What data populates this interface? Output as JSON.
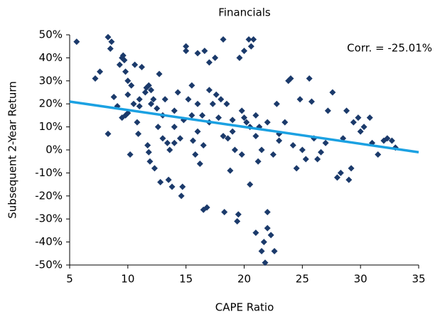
{
  "chart_data": {
    "type": "scatter",
    "title": "Financials",
    "x_label": "CAPE Ratio",
    "y_label": "Subsequent 2-Year Return",
    "annotation": "Corr. = -25.01%",
    "color": "#1b3a6b",
    "x": [
      5.6,
      7.2,
      7.6,
      8.3,
      8.3,
      8.5,
      8.6,
      8.8,
      9.1,
      9.3,
      9.5,
      9.6,
      9.7,
      9.8,
      9.8,
      10,
      10,
      10.2,
      10.3,
      10.5,
      10.6,
      10.8,
      10.9,
      11,
      11.2,
      11.5,
      11.6,
      11.8,
      11.7,
      11.8,
      11.9,
      12,
      12.2,
      12.3,
      12.5,
      12.6,
      12.7,
      12.8,
      13,
      13.2,
      13.4,
      13.5,
      13.6,
      13.8,
      14,
      14,
      14.3,
      14.5,
      14.6,
      14.7,
      14.8,
      15,
      15,
      15.2,
      15.5,
      15.6,
      15.8,
      16,
      16,
      16.2,
      16.4,
      16.5,
      16.6,
      16.8,
      17,
      17,
      17.3,
      17.5,
      17.6,
      17.8,
      18,
      18.2,
      18.3,
      18.5,
      18.6,
      18.8,
      19,
      19.2,
      19.4,
      19.5,
      19.6,
      19.8,
      20,
      20.2,
      20.4,
      20.5,
      20.6,
      20.8,
      21,
      21,
      21.2,
      21.3,
      21.5,
      21.7,
      21.8,
      22,
      22,
      22.3,
      22.6,
      22.8,
      23,
      23.5,
      23.8,
      24,
      24.2,
      24.5,
      24.8,
      25,
      25.3,
      25.6,
      25.8,
      26,
      26.3,
      26.6,
      27,
      27.2,
      27.6,
      28,
      28.3,
      28.5,
      28.8,
      29,
      29.2,
      29.4,
      29.8,
      30,
      30.3,
      30.8,
      31,
      31.5,
      32,
      32.3,
      32.7,
      33,
      15.5,
      16,
      17,
      19,
      20,
      21,
      22,
      23,
      20.5,
      14,
      13,
      12,
      11,
      10,
      9.5,
      18.2,
      16.5,
      19.8,
      22.5,
      21.5
    ],
    "values": [
      47,
      31,
      34,
      7,
      49,
      44,
      47,
      23,
      19,
      37,
      40,
      41,
      39,
      34,
      15,
      30,
      16,
      -2,
      28,
      20,
      37,
      12,
      7,
      19,
      36,
      25,
      27,
      28,
      2,
      -1,
      -5,
      26,
      22,
      -8,
      18,
      10,
      33,
      -14,
      15,
      22,
      3,
      -13,
      0,
      -16,
      17,
      10,
      25,
      5,
      -20,
      -16,
      13,
      45,
      43,
      22,
      28,
      4,
      -2,
      42,
      8,
      -6,
      15,
      -26,
      43,
      -25,
      26,
      38,
      20,
      40,
      24,
      14,
      22,
      48,
      -27,
      20,
      5,
      -9,
      13,
      0,
      -31,
      -28,
      40,
      17,
      43,
      12,
      48,
      -15,
      45,
      48,
      -36,
      15,
      -5,
      10,
      -44,
      -40,
      -49,
      -27,
      -34,
      -37,
      -44,
      20,
      7,
      12,
      30,
      31,
      2,
      -8,
      22,
      0,
      -4,
      31,
      21,
      5,
      -4,
      -1,
      3,
      17,
      25,
      -12,
      -10,
      5,
      17,
      -13,
      -8,
      12,
      14,
      8,
      10,
      14,
      3,
      -2,
      4,
      5,
      4,
      1,
      15,
      20,
      12,
      8,
      14,
      6,
      12,
      4,
      10,
      3,
      5,
      20,
      22,
      24,
      14,
      6,
      2,
      -2,
      -2,
      0
    ],
    "trendline": {
      "x": [
        5,
        35
      ],
      "y": [
        21,
        -1
      ],
      "color": "#1ba1e2"
    },
    "xlim": [
      5,
      35
    ],
    "xticks": [
      5,
      10,
      15,
      20,
      25,
      30,
      35
    ],
    "ylim": [
      -50,
      50
    ],
    "yticks": [
      {
        "value": -50,
        "label": "-50%"
      },
      {
        "value": -40,
        "label": "-40%"
      },
      {
        "value": -30,
        "label": "-30%"
      },
      {
        "value": -20,
        "label": "-20%"
      },
      {
        "value": -10,
        "label": "-10%"
      },
      {
        "value": 0,
        "label": "0%"
      },
      {
        "value": 10,
        "label": "10%"
      },
      {
        "value": 20,
        "label": "20%"
      },
      {
        "value": 30,
        "label": "30%"
      },
      {
        "value": 40,
        "label": "40%"
      },
      {
        "value": 50,
        "label": "50%"
      }
    ]
  }
}
